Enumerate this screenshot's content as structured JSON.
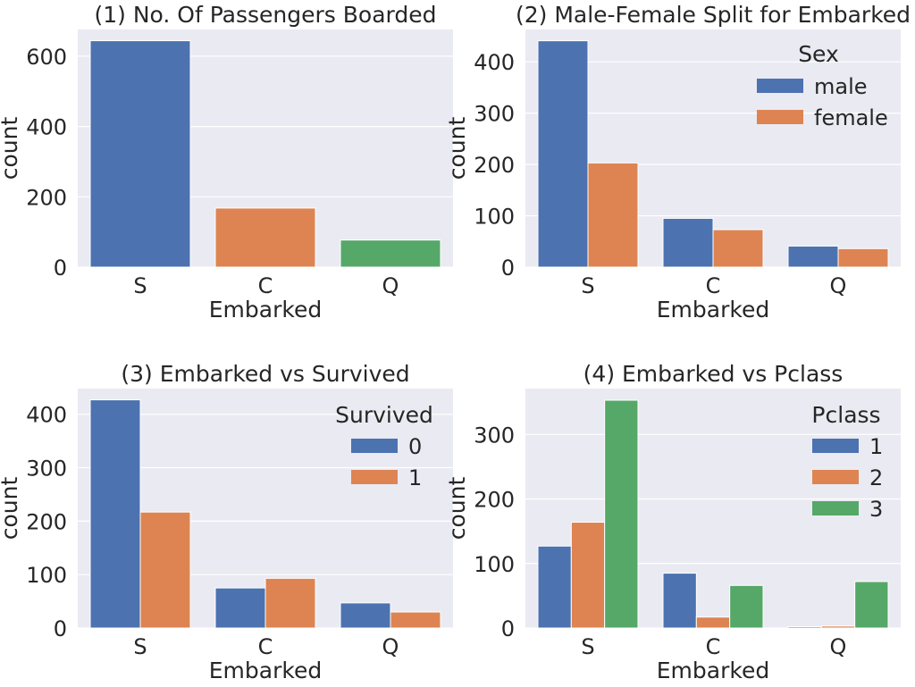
{
  "chart_data": [
    {
      "type": "bar",
      "title": "(1) No. Of Passengers Boarded",
      "xlabel": "Embarked",
      "ylabel": "count",
      "categories": [
        "S",
        "C",
        "Q"
      ],
      "series": [
        {
          "values": [
            644,
            168,
            77
          ]
        }
      ],
      "bar_colors": [
        "#4c72b0",
        "#dd8452",
        "#55a868"
      ],
      "ylim": [
        0,
        676
      ],
      "yticks": [
        0,
        200,
        400,
        600
      ],
      "legend": null,
      "grid": true
    },
    {
      "type": "bar",
      "title": "(2) Male-Female Split for Embarked",
      "xlabel": "Embarked",
      "ylabel": "count",
      "categories": [
        "S",
        "C",
        "Q"
      ],
      "series": [
        {
          "name": "male",
          "values": [
            441,
            95,
            41
          ],
          "color": "#4c72b0"
        },
        {
          "name": "female",
          "values": [
            203,
            73,
            36
          ],
          "color": "#dd8452"
        }
      ],
      "ylim": [
        0,
        463
      ],
      "yticks": [
        0,
        100,
        200,
        300,
        400
      ],
      "legend": {
        "title": "Sex",
        "position": "top-right"
      },
      "grid": true
    },
    {
      "type": "bar",
      "title": "(3) Embarked vs Survived",
      "xlabel": "Embarked",
      "ylabel": "count",
      "categories": [
        "S",
        "C",
        "Q"
      ],
      "series": [
        {
          "name": "0",
          "values": [
            427,
            75,
            47
          ],
          "color": "#4c72b0"
        },
        {
          "name": "1",
          "values": [
            217,
            93,
            30
          ],
          "color": "#dd8452"
        }
      ],
      "ylim": [
        0,
        448
      ],
      "yticks": [
        0,
        100,
        200,
        300,
        400
      ],
      "legend": {
        "title": "Survived",
        "position": "top-right"
      },
      "grid": true
    },
    {
      "type": "bar",
      "title": "(4) Embarked vs Pclass",
      "xlabel": "Embarked",
      "ylabel": "count",
      "categories": [
        "S",
        "C",
        "Q"
      ],
      "series": [
        {
          "name": "1",
          "values": [
            127,
            85,
            2
          ],
          "color": "#4c72b0"
        },
        {
          "name": "2",
          "values": [
            164,
            17,
            3
          ],
          "color": "#dd8452"
        },
        {
          "name": "3",
          "values": [
            353,
            66,
            72
          ],
          "color": "#55a868"
        }
      ],
      "ylim": [
        0,
        371
      ],
      "yticks": [
        0,
        100,
        200,
        300
      ],
      "legend": {
        "title": "Pclass",
        "position": "top-right"
      },
      "grid": true
    }
  ]
}
